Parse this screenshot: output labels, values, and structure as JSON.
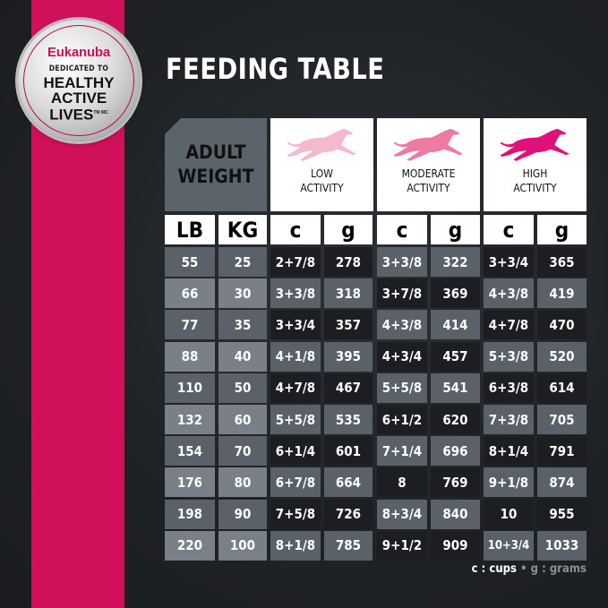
{
  "badge": {
    "brand": "Eukanuba",
    "line1": "DEDICATED TO",
    "line2": "HEALTHY",
    "line3": "ACTIVE",
    "line4": "LIVES",
    "tm": "TM MC"
  },
  "title": "FEEDING TABLE",
  "colors": {
    "ribbon": "#d0105a",
    "low": "#f5b9cd",
    "moderate": "#ec7aa3",
    "high": "#e0127a"
  },
  "header": {
    "adult_weight": [
      "ADULT",
      "WEIGHT"
    ],
    "activities": [
      {
        "line1": "LOW",
        "line2": "ACTIVITY",
        "icon": "running-dog-icon"
      },
      {
        "line1": "MODERATE",
        "line2": "ACTIVITY",
        "icon": "running-dog-icon"
      },
      {
        "line1": "HIGH",
        "line2": "ACTIVITY",
        "icon": "running-dog-icon"
      }
    ],
    "units": [
      "LB",
      "KG",
      "c",
      "g",
      "c",
      "g",
      "c",
      "g"
    ]
  },
  "rows": [
    [
      "55",
      "25",
      "2+7/8",
      "278",
      "3+3/8",
      "322",
      "3+3/4",
      "365"
    ],
    [
      "66",
      "30",
      "3+3/8",
      "318",
      "3+7/8",
      "369",
      "4+3/8",
      "419"
    ],
    [
      "77",
      "35",
      "3+3/4",
      "357",
      "4+3/8",
      "414",
      "4+7/8",
      "470"
    ],
    [
      "88",
      "40",
      "4+1/8",
      "395",
      "4+3/4",
      "457",
      "5+3/8",
      "520"
    ],
    [
      "110",
      "50",
      "4+7/8",
      "467",
      "5+5/8",
      "541",
      "6+3/8",
      "614"
    ],
    [
      "132",
      "60",
      "5+5/8",
      "535",
      "6+1/2",
      "620",
      "7+3/8",
      "705"
    ],
    [
      "154",
      "70",
      "6+1/4",
      "601",
      "7+1/4",
      "696",
      "8+1/4",
      "791"
    ],
    [
      "176",
      "80",
      "6+7/8",
      "664",
      "8",
      "769",
      "9+1/8",
      "874"
    ],
    [
      "198",
      "90",
      "7+5/8",
      "726",
      "8+3/4",
      "840",
      "10",
      "955"
    ],
    [
      "220",
      "100",
      "8+1/8",
      "785",
      "9+1/2",
      "909",
      "10+3/4",
      "1033"
    ]
  ],
  "legend": {
    "cups": "c : cups",
    "sep": "•",
    "grams": "g : grams"
  }
}
